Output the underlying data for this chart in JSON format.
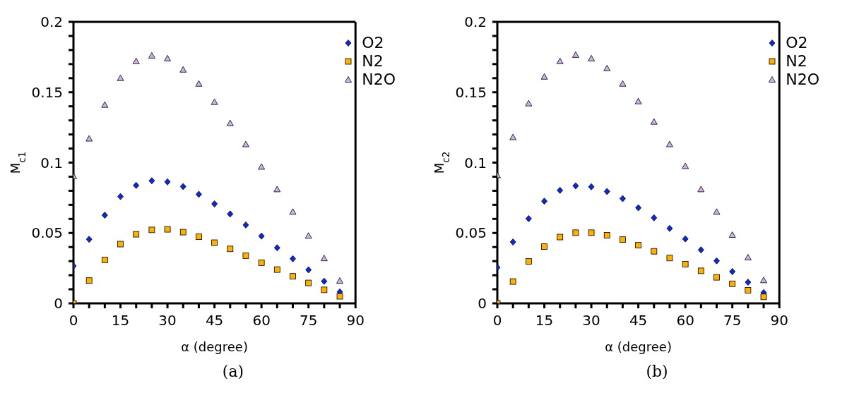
{
  "chart_data": [
    {
      "type": "scatter",
      "xlabel": "α (degree)",
      "ylabel": "M$_{c1}$",
      "annotations": [
        "(a)"
      ],
      "legend": "top right",
      "x": [
        0,
        5,
        10,
        15,
        20,
        25,
        30,
        35,
        40,
        45,
        50,
        55,
        60,
        65,
        70,
        75,
        80,
        85
      ],
      "xlim": [
        0,
        90
      ],
      "xticks": [
        0,
        {
          "value": 5,
          "label": null
        },
        {
          "value": 10,
          "label": null
        },
        15,
        {
          "value": 20,
          "label": null
        },
        {
          "value": 25,
          "label": null
        },
        30,
        {
          "value": 35,
          "label": null
        },
        {
          "value": 40,
          "label": null
        },
        45,
        {
          "value": 50,
          "label": null
        },
        {
          "value": 55,
          "label": null
        },
        60,
        {
          "value": 65,
          "label": null
        },
        {
          "value": 70,
          "label": null
        },
        75,
        {
          "value": 80,
          "label": null
        },
        {
          "value": 85,
          "label": null
        },
        90
      ],
      "ylim": [
        0,
        0.2
      ],
      "yticks": [
        0,
        {
          "value": 0.01,
          "label": null
        },
        {
          "value": 0.02,
          "label": null
        },
        {
          "value": 0.03,
          "label": null
        },
        {
          "value": 0.04,
          "label": null
        },
        0.05,
        {
          "value": 0.06,
          "label": null
        },
        {
          "value": 0.07,
          "label": null
        },
        {
          "value": 0.08,
          "label": null
        },
        {
          "value": 0.09,
          "label": null
        },
        0.1,
        {
          "value": 0.11,
          "label": null
        },
        {
          "value": 0.12,
          "label": null
        },
        {
          "value": 0.13,
          "label": null
        },
        {
          "value": 0.14,
          "label": null
        },
        0.15,
        {
          "value": 0.16,
          "label": null
        },
        {
          "value": 0.17,
          "label": null
        },
        {
          "value": 0.18,
          "label": null
        },
        {
          "value": 0.19,
          "label": null
        },
        0.2
      ],
      "series": [
        {
          "name": "O2",
          "color": "#0a2ad8",
          "marker": "diamond",
          "values": [
            0.0266,
            0.0455,
            0.0626,
            0.0759,
            0.0838,
            0.0871,
            0.0863,
            0.083,
            0.0775,
            0.0707,
            0.0635,
            0.0557,
            0.0478,
            0.0395,
            0.0317,
            0.0238,
            0.0157,
            0.0081
          ]
        },
        {
          "name": "N2",
          "color": "#ffb000",
          "marker": "square",
          "values": [
            0,
            0.0162,
            0.0309,
            0.0421,
            0.0491,
            0.0522,
            0.0526,
            0.0506,
            0.0473,
            0.0431,
            0.0387,
            0.0339,
            0.0289,
            0.024,
            0.0192,
            0.0145,
            0.0096,
            0.005
          ]
        },
        {
          "name": "N2O",
          "color": "#d0b0e8",
          "marker": "triangle",
          "values": [
            0.0904,
            0.117,
            0.141,
            0.16,
            0.172,
            0.176,
            0.174,
            0.166,
            0.156,
            0.143,
            0.128,
            0.113,
            0.097,
            0.081,
            0.065,
            0.048,
            0.032,
            0.016
          ]
        }
      ]
    },
    {
      "type": "scatter",
      "xlabel": "α (degree)",
      "ylabel": "M$_{c2}$",
      "annotations": [
        "(b)"
      ],
      "legend": "top right",
      "x": [
        0,
        5,
        10,
        15,
        20,
        25,
        30,
        35,
        40,
        45,
        50,
        55,
        60,
        65,
        70,
        75,
        80,
        85
      ],
      "xlim": [
        0,
        90
      ],
      "xticks": [
        0,
        {
          "value": 5,
          "label": null
        },
        {
          "value": 10,
          "label": null
        },
        15,
        {
          "value": 20,
          "label": null
        },
        {
          "value": 25,
          "label": null
        },
        30,
        {
          "value": 35,
          "label": null
        },
        {
          "value": 40,
          "label": null
        },
        45,
        {
          "value": 50,
          "label": null
        },
        {
          "value": 55,
          "label": null
        },
        60,
        {
          "value": 65,
          "label": null
        },
        {
          "value": 70,
          "label": null
        },
        75,
        {
          "value": 80,
          "label": null
        },
        {
          "value": 85,
          "label": null
        },
        90
      ],
      "ylim": [
        0,
        0.2
      ],
      "yticks": [
        0,
        {
          "value": 0.01,
          "label": null
        },
        {
          "value": 0.02,
          "label": null
        },
        {
          "value": 0.03,
          "label": null
        },
        {
          "value": 0.04,
          "label": null
        },
        0.05,
        {
          "value": 0.06,
          "label": null
        },
        {
          "value": 0.07,
          "label": null
        },
        {
          "value": 0.08,
          "label": null
        },
        {
          "value": 0.09,
          "label": null
        },
        0.1,
        {
          "value": 0.11,
          "label": null
        },
        {
          "value": 0.12,
          "label": null
        },
        {
          "value": 0.13,
          "label": null
        },
        {
          "value": 0.14,
          "label": null
        },
        0.15,
        {
          "value": 0.16,
          "label": null
        },
        {
          "value": 0.17,
          "label": null
        },
        {
          "value": 0.18,
          "label": null
        },
        {
          "value": 0.19,
          "label": null
        },
        0.2
      ],
      "series": [
        {
          "name": "O2",
          "color": "#0a2ad8",
          "marker": "diamond",
          "values": [
            0.0255,
            0.0436,
            0.0602,
            0.0726,
            0.0803,
            0.0835,
            0.0828,
            0.0795,
            0.0744,
            0.0679,
            0.0608,
            0.0532,
            0.0458,
            0.038,
            0.0302,
            0.0226,
            0.015,
            0.0076
          ]
        },
        {
          "name": "N2",
          "color": "#ffb000",
          "marker": "square",
          "values": [
            0,
            0.0155,
            0.0298,
            0.0403,
            0.0471,
            0.0502,
            0.0502,
            0.0484,
            0.0453,
            0.0413,
            0.037,
            0.0322,
            0.0278,
            0.0231,
            0.0185,
            0.0139,
            0.0093,
            0.0046
          ]
        },
        {
          "name": "N2O",
          "color": "#d0b0e8",
          "marker": "triangle",
          "values": [
            0.091,
            0.118,
            0.142,
            0.161,
            0.172,
            0.1765,
            0.174,
            0.167,
            0.156,
            0.1435,
            0.129,
            0.113,
            0.0975,
            0.081,
            0.065,
            0.0486,
            0.0326,
            0.0164
          ]
        }
      ]
    }
  ]
}
